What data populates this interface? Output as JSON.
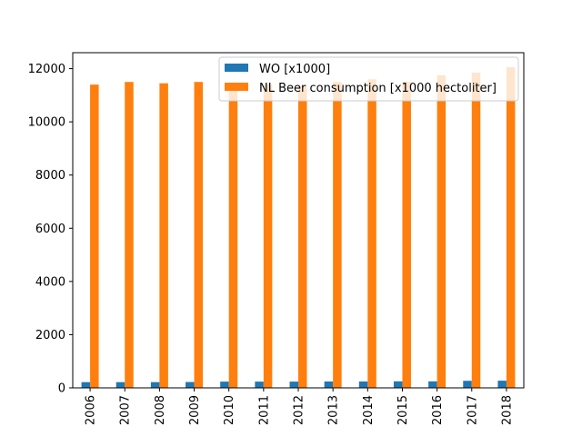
{
  "chart_data": {
    "type": "bar",
    "title": "",
    "xlabel": "",
    "ylabel": "",
    "categories": [
      "2006",
      "2007",
      "2008",
      "2009",
      "2010",
      "2011",
      "2012",
      "2013",
      "2014",
      "2015",
      "2016",
      "2017",
      "2018"
    ],
    "series": [
      {
        "name": "WO [x1000]",
        "color": "#1f77b4",
        "values": [
          215,
          215,
          215,
          220,
          235,
          235,
          235,
          240,
          240,
          245,
          245,
          265,
          270
        ]
      },
      {
        "name": "NL Beer consumption [x1000 hectoliter]",
        "color": "#ff7f0e",
        "values": [
          11400,
          11500,
          11450,
          11500,
          11350,
          11400,
          11350,
          11500,
          11600,
          11500,
          11750,
          11850,
          12050
        ]
      }
    ],
    "ylim": [
      0,
      12600
    ],
    "yticks": [
      0,
      2000,
      4000,
      6000,
      8000,
      10000,
      12000
    ],
    "grid": false,
    "legend_position": "top-right"
  }
}
